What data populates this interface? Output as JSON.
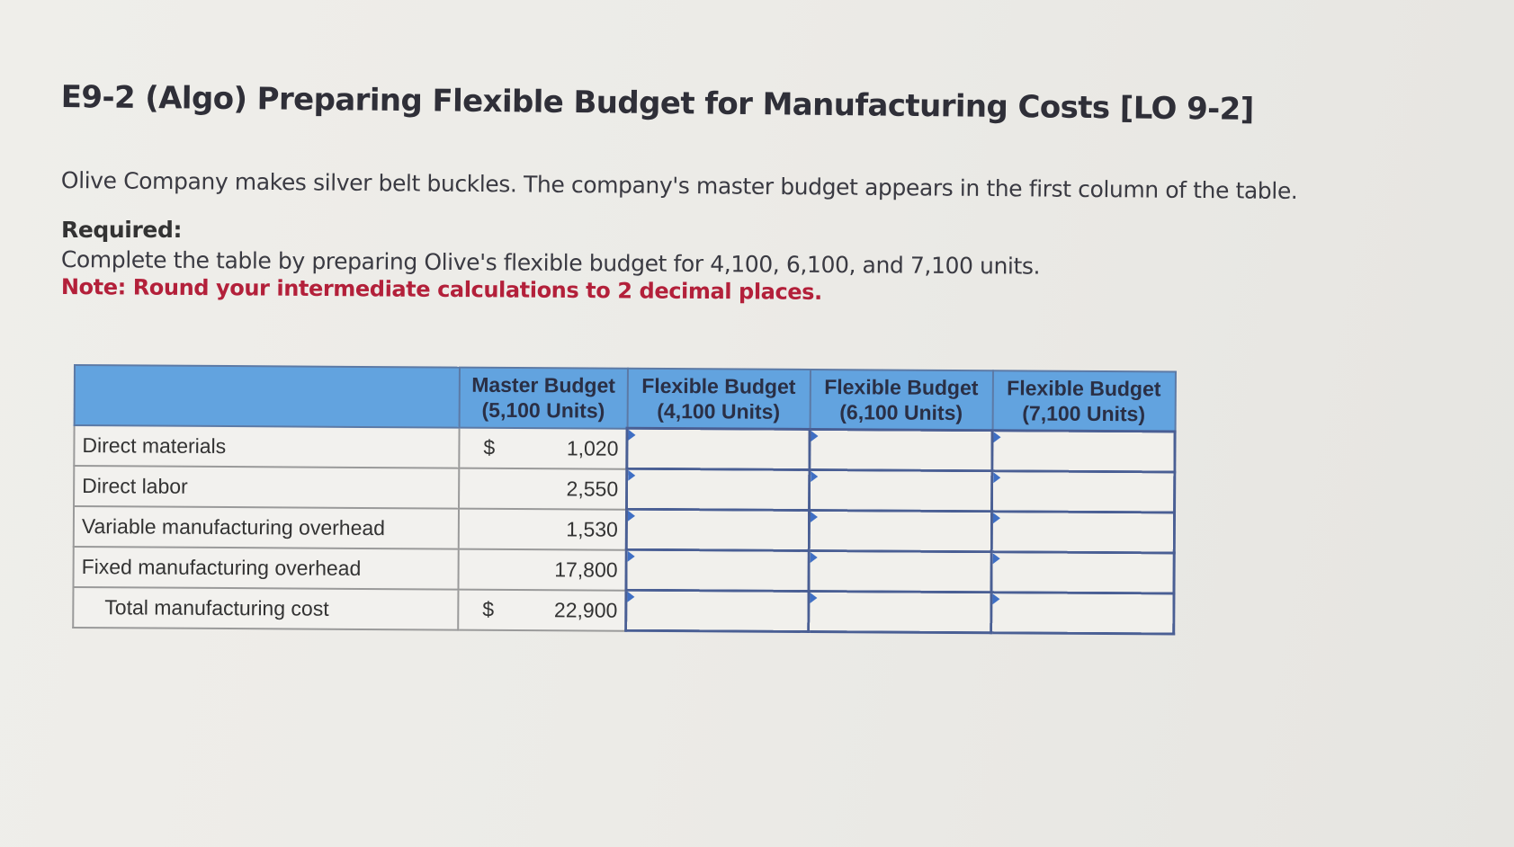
{
  "title": "E9-2 (Algo) Preparing Flexible Budget for Manufacturing Costs [LO 9-2]",
  "intro": "Olive Company makes silver belt buckles. The company's master budget appears in the first column of the table.",
  "required_heading": "Required:",
  "required_text": "Complete the table by preparing Olive's flexible budget for 4,100, 6,100, and 7,100 units.",
  "note": "Note: Round your intermediate calculations to 2 decimal places.",
  "table": {
    "headers": [
      {
        "line1": "",
        "line2": ""
      },
      {
        "line1": "Master Budget",
        "line2": "(5,100 Units)"
      },
      {
        "line1": "Flexible Budget",
        "line2": "(4,100 Units)"
      },
      {
        "line1": "Flexible Budget",
        "line2": "(6,100 Units)"
      },
      {
        "line1": "Flexible Budget",
        "line2": "(7,100 Units)"
      }
    ],
    "rows": [
      {
        "label": "Direct materials",
        "currency": "$",
        "master": "1,020",
        "flex": [
          "",
          "",
          ""
        ]
      },
      {
        "label": "Direct labor",
        "currency": "",
        "master": "2,550",
        "flex": [
          "",
          "",
          ""
        ]
      },
      {
        "label": "Variable manufacturing overhead",
        "currency": "",
        "master": "1,530",
        "flex": [
          "",
          "",
          ""
        ]
      },
      {
        "label": "Fixed manufacturing overhead",
        "currency": "",
        "master": "17,800",
        "flex": [
          "",
          "",
          ""
        ]
      },
      {
        "label": "Total manufacturing cost",
        "currency": "$",
        "master": "22,900",
        "flex": [
          "",
          "",
          ""
        ]
      }
    ]
  },
  "colors": {
    "header_bg": "#62a3df",
    "note_red": "#b3203a",
    "input_border": "#4a5f94"
  }
}
